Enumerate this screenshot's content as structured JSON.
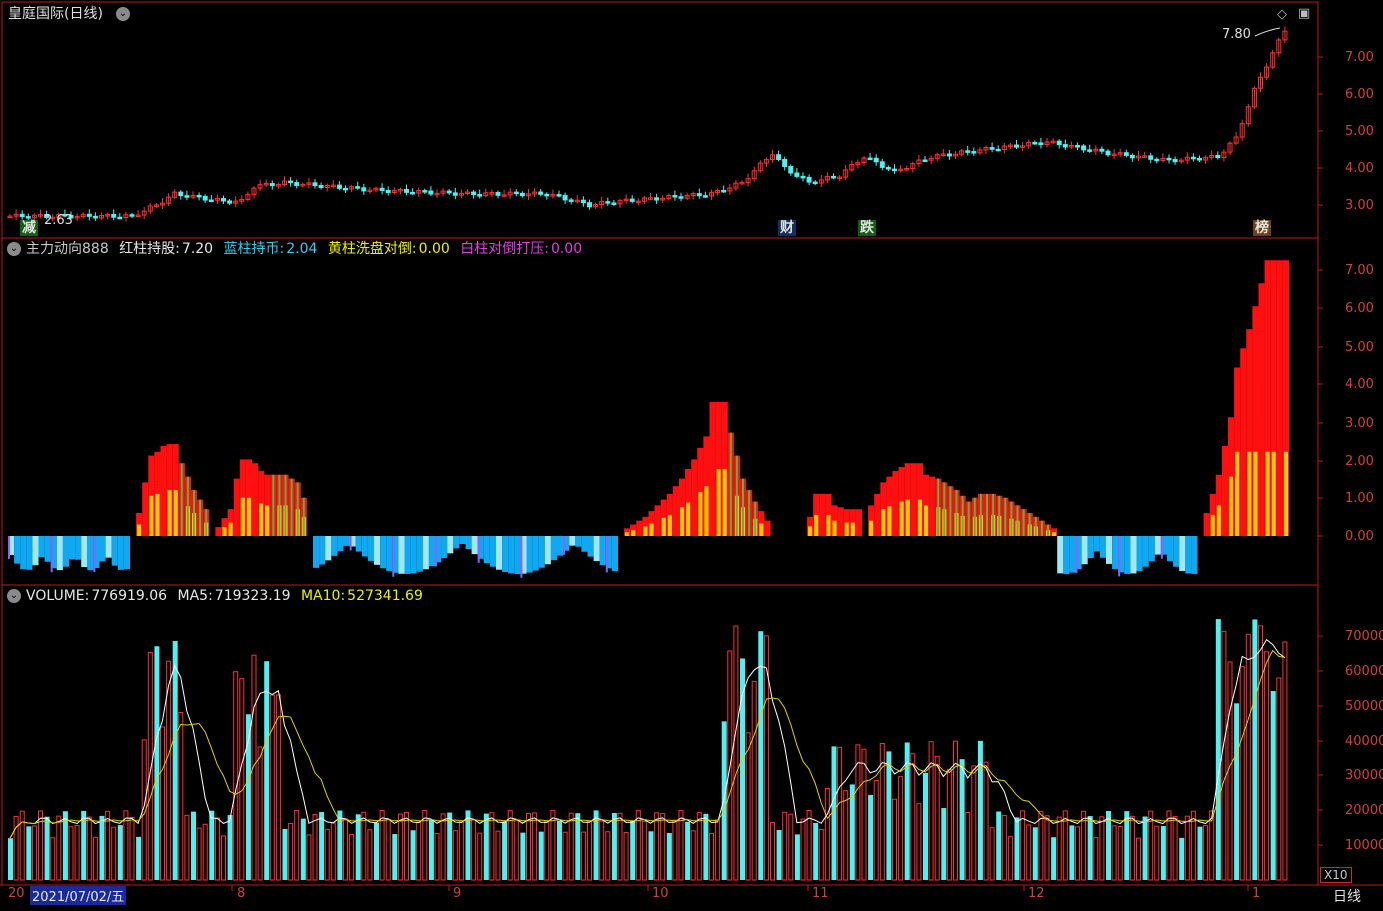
{
  "stock": {
    "title": "皇庭国际(日线)",
    "period_label": "日线"
  },
  "price_panel": {
    "y_ticks": [
      "7.00",
      "6.00",
      "5.00",
      "4.00",
      "3.00"
    ],
    "high_label": "7.80",
    "low_label": "2.63",
    "event_tags": [
      "减",
      "财",
      "跌",
      "榜"
    ]
  },
  "indicator_panel": {
    "name": "主力动向888",
    "fields": [
      {
        "label": "红柱持股:",
        "value": "7.20",
        "color": "#e8e8e8"
      },
      {
        "label": "蓝柱持币:",
        "value": "2.04",
        "color": "#30d0f0"
      },
      {
        "label": "黄柱洗盘对倒:",
        "value": "0.00",
        "color": "#f0f000"
      },
      {
        "label": "白柱对倒打压:",
        "value": "0.00",
        "color": "#e040e0"
      }
    ],
    "y_ticks": [
      "7.00",
      "6.00",
      "5.00",
      "4.00",
      "3.00",
      "2.00",
      "1.00",
      "0.00"
    ]
  },
  "volume_panel": {
    "fields": [
      {
        "label": "VOLUME:",
        "value": "776919.06",
        "color": "#e8e8e8"
      },
      {
        "label": "MA5:",
        "value": "719323.19",
        "color": "#e8e8e8"
      },
      {
        "label": "MA10:",
        "value": "527341.69",
        "color": "#f0f000"
      }
    ],
    "y_ticks": [
      "70000",
      "60000",
      "50000",
      "40000",
      "30000",
      "20000",
      "10000"
    ],
    "scale_label": "X10"
  },
  "date_axis": {
    "cursor_date": "2021/07/02/五",
    "year_prefix": "20",
    "months": [
      "8",
      "9",
      "10",
      "11",
      "12",
      "1"
    ]
  },
  "colors": {
    "up": "#ff3030",
    "down": "#50f0f0",
    "axis": "#c01818",
    "bg": "#000000",
    "ma5": "#ffffff",
    "ma10": "#e0d000"
  }
}
